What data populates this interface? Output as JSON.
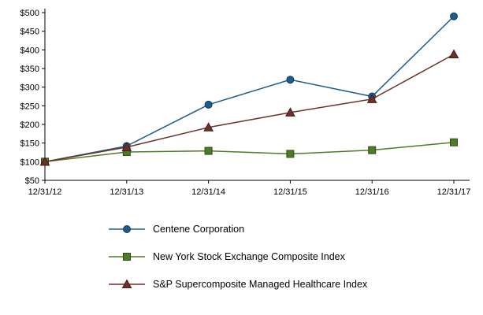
{
  "chart_data": {
    "type": "line",
    "title": "",
    "xlabel": "",
    "ylabel": "",
    "categories": [
      "12/31/12",
      "12/31/13",
      "12/31/14",
      "12/31/15",
      "12/31/16",
      "12/31/17"
    ],
    "series": [
      {
        "name": "Centene Corporation",
        "marker": "circle",
        "color": "#1E5C8C",
        "marker_stroke": "#123A5B",
        "values": [
          100,
          142,
          253,
          320,
          275,
          490
        ]
      },
      {
        "name": "New York Stock Exchange Composite Index",
        "marker": "square",
        "color": "#4F7B28",
        "marker_stroke": "#2F4D16",
        "values": [
          100,
          126,
          129,
          121,
          131,
          152
        ]
      },
      {
        "name": "S&P Supercomposite Managed Healthcare Index",
        "marker": "triangle",
        "color": "#6E3029",
        "marker_stroke": "#401B17",
        "values": [
          100,
          139,
          192,
          232,
          268,
          388
        ]
      }
    ],
    "ylim": [
      50,
      500
    ],
    "ytick_step": 50,
    "ytick_labels": [
      "$50",
      "$100",
      "$150",
      "$200",
      "$250",
      "$300",
      "$350",
      "$400",
      "$450",
      "$500"
    ],
    "grid": false,
    "legend_position": "bottom",
    "axis_color": "#000000"
  }
}
